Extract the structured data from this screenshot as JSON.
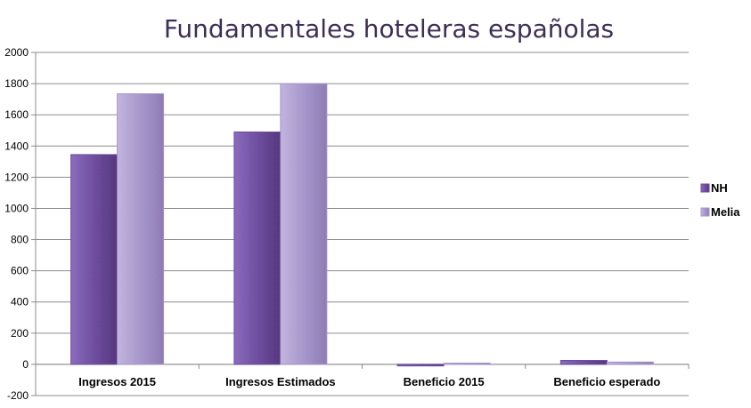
{
  "chart_data": {
    "type": "bar",
    "title": "Fundamentales hoteleras españolas",
    "categories": [
      "Ingresos 2015",
      "Ingresos Estimados",
      "Beneficio 2015",
      "Beneficio esperado"
    ],
    "series": [
      {
        "name": "NH",
        "values": [
          1345,
          1490,
          -10,
          25
        ],
        "color": "#6b4a9a"
      },
      {
        "name": "Melia",
        "values": [
          1735,
          1800,
          8,
          15
        ],
        "color": "#a595c8"
      }
    ],
    "ylim": [
      -200,
      2000
    ],
    "yticks": [
      -200,
      0,
      200,
      400,
      600,
      800,
      1000,
      1200,
      1400,
      1600,
      1800,
      2000
    ],
    "grid": true,
    "legend_position": "right"
  }
}
